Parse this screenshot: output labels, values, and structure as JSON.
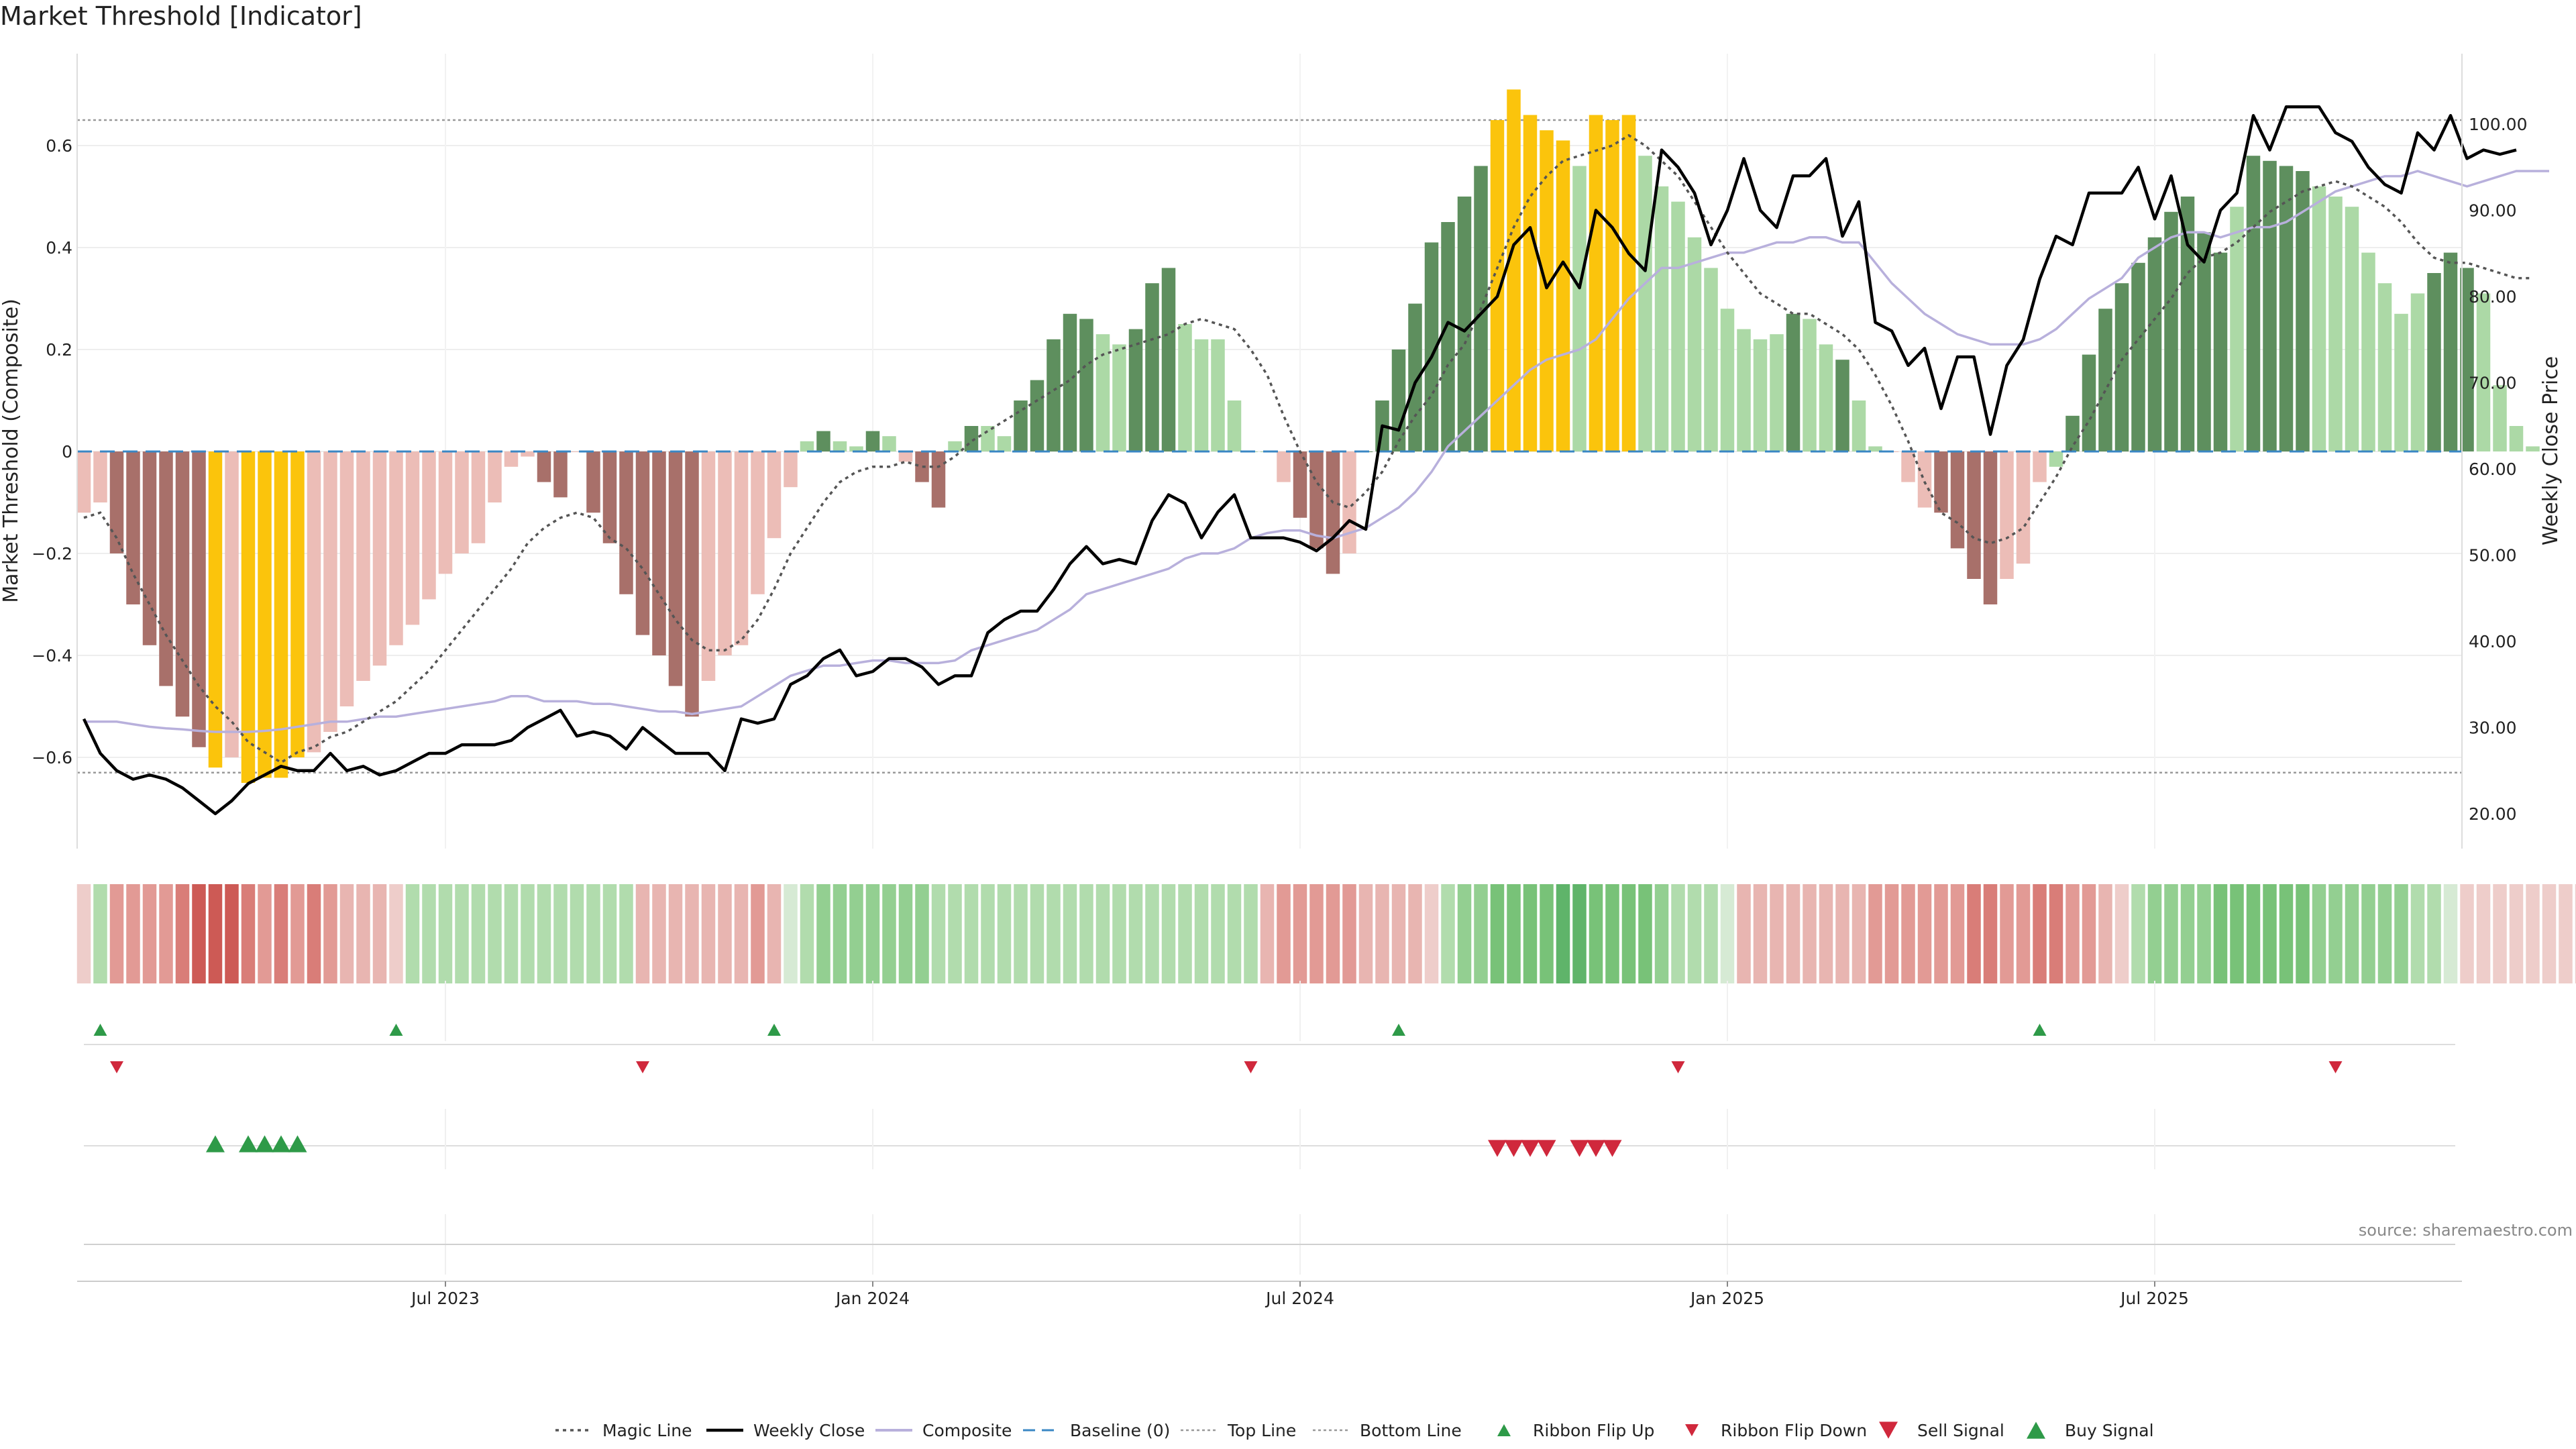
{
  "title": "Market Threshold [Indicator]",
  "source": "source: sharemaestro.com",
  "colors": {
    "bar_dark_red": "#a8706a",
    "bar_light_red": "#ecbdb7",
    "bar_dark_green": "#5e8f5e",
    "bar_light_green": "#acd9a6",
    "bar_yellow": "#fbc40c",
    "weekly_close": "#000000",
    "composite": "#b8b0dc",
    "magic": "#555555",
    "baseline": "#3a87c4",
    "guide": "#999999",
    "signal_up": "#2e9a48",
    "signal_down": "#d0283c"
  },
  "chart_data": {
    "type": "bar",
    "weeks": 150,
    "y_left": {
      "label": "Market Threshold (Composite)",
      "ticks": [
        -0.6,
        -0.4,
        -0.2,
        0,
        0.2,
        0.4,
        0.6
      ],
      "tick_labels": [
        "−0.6",
        "−0.4",
        "−0.2",
        "0",
        "0.2",
        "0.4",
        "0.6"
      ],
      "range": [
        -0.77,
        0.78
      ]
    },
    "y_right": {
      "label": "Weekly Close Price",
      "ticks": [
        20,
        30,
        40,
        50,
        60,
        70,
        80,
        90,
        100
      ],
      "tick_labels": [
        "20.00",
        "30.00",
        "40.00",
        "50.00",
        "60.00",
        "70.00",
        "80.00",
        "90.00",
        "100.00"
      ],
      "range": [
        15,
        107.5
      ]
    },
    "x_ticks": [
      {
        "label": "Jul 2023",
        "week": 22
      },
      {
        "label": "Jan 2024",
        "week": 48
      },
      {
        "label": "Jul 2024",
        "week": 74
      },
      {
        "label": "Jan 2025",
        "week": 100
      },
      {
        "label": "Jul 2025",
        "week": 126
      }
    ],
    "top_line": 0.65,
    "bottom_line": -0.63,
    "composite_bars": [
      -0.12,
      -0.1,
      -0.2,
      -0.3,
      -0.38,
      -0.46,
      -0.52,
      -0.58,
      -0.62,
      -0.6,
      -0.65,
      -0.64,
      -0.64,
      -0.6,
      -0.59,
      -0.55,
      -0.5,
      -0.45,
      -0.42,
      -0.38,
      -0.34,
      -0.29,
      -0.24,
      -0.2,
      -0.18,
      -0.1,
      -0.03,
      -0.01,
      -0.06,
      -0.09,
      0,
      -0.12,
      -0.18,
      -0.28,
      -0.36,
      -0.4,
      -0.46,
      -0.52,
      -0.45,
      -0.4,
      -0.38,
      -0.28,
      -0.17,
      -0.07,
      0.02,
      0.04,
      0.02,
      0.01,
      0.04,
      0.03,
      -0.02,
      -0.06,
      -0.11,
      0.02,
      0.05,
      0.05,
      0.03,
      0.1,
      0.14,
      0.22,
      0.27,
      0.26,
      0.23,
      0.21,
      0.24,
      0.33,
      0.36,
      0.25,
      0.22,
      0.22,
      0.1,
      0,
      0,
      -0.06,
      -0.13,
      -0.19,
      -0.24,
      -0.2,
      0,
      0.1,
      0.2,
      0.29,
      0.41,
      0.45,
      0.5,
      0.56,
      0.65,
      0.71,
      0.66,
      0.63,
      0.61,
      0.56,
      0.66,
      0.65,
      0.66,
      0.58,
      0.52,
      0.49,
      0.42,
      0.36,
      0.28,
      0.24,
      0.22,
      0.23,
      0.27,
      0.26,
      0.21,
      0.18,
      0.1,
      0.01,
      0,
      -0.06,
      -0.11,
      -0.12,
      -0.19,
      -0.25,
      -0.3,
      -0.25,
      -0.22,
      -0.06,
      -0.03,
      0.07,
      0.19,
      0.28,
      0.33,
      0.37,
      0.42,
      0.47,
      0.5,
      0.43,
      0.39,
      0.48,
      0.58,
      0.57,
      0.56,
      0.55,
      0.52,
      0.5,
      0.48,
      0.39,
      0.33,
      0.27,
      0.31,
      0.35,
      0.39,
      0.36,
      0.31,
      0.13,
      0.05,
      0.01
    ],
    "bar_colors": [
      "lr",
      "lr",
      "dr",
      "dr",
      "dr",
      "dr",
      "dr",
      "dr",
      "y",
      "lr",
      "y",
      "y",
      "y",
      "y",
      "lr",
      "lr",
      "lr",
      "lr",
      "lr",
      "lr",
      "lr",
      "lr",
      "lr",
      "lr",
      "lr",
      "lr",
      "lr",
      "lr",
      "dr",
      "dr",
      "lr",
      "dr",
      "dr",
      "dr",
      "dr",
      "dr",
      "dr",
      "dr",
      "lr",
      "lr",
      "lr",
      "lr",
      "lr",
      "lr",
      "lg",
      "dg",
      "lg",
      "lg",
      "dg",
      "lg",
      "lr",
      "dr",
      "dr",
      "lg",
      "dg",
      "lg",
      "lg",
      "dg",
      "dg",
      "dg",
      "dg",
      "dg",
      "lg",
      "lg",
      "dg",
      "dg",
      "dg",
      "lg",
      "lg",
      "lg",
      "lg",
      "lg",
      "lg",
      "lr",
      "dr",
      "dr",
      "dr",
      "lr",
      "dg",
      "dg",
      "dg",
      "dg",
      "dg",
      "dg",
      "dg",
      "dg",
      "y",
      "y",
      "y",
      "y",
      "y",
      "lg",
      "y",
      "y",
      "y",
      "lg",
      "lg",
      "lg",
      "lg",
      "lg",
      "lg",
      "lg",
      "lg",
      "lg",
      "dg",
      "lg",
      "lg",
      "dg",
      "lg",
      "lg",
      "lr",
      "lr",
      "lr",
      "dr",
      "dr",
      "dr",
      "dr",
      "lr",
      "lr",
      "lr",
      "lg",
      "dg",
      "dg",
      "dg",
      "dg",
      "dg",
      "dg",
      "dg",
      "dg",
      "dg",
      "dg",
      "lg",
      "dg",
      "dg",
      "dg",
      "dg",
      "lg",
      "lg",
      "lg",
      "lg",
      "lg",
      "lg",
      "lg",
      "dg",
      "dg",
      "dg",
      "lg",
      "lg"
    ],
    "weekly_close": [
      31,
      27,
      25,
      24,
      24.5,
      24,
      23,
      21.5,
      20,
      21.5,
      23.5,
      24.5,
      25.5,
      25,
      25,
      27,
      25,
      25.5,
      24.5,
      25,
      26,
      27,
      27,
      28,
      28,
      28,
      28.5,
      30,
      31,
      32,
      29,
      29.5,
      29,
      27.5,
      30,
      28.5,
      27,
      27,
      27,
      25,
      31,
      30.5,
      31,
      35,
      36,
      38,
      39,
      36,
      36.5,
      38,
      38,
      37,
      35,
      36,
      36,
      41,
      42.5,
      43.5,
      43.5,
      46,
      49,
      51,
      49,
      49.5,
      49,
      54,
      57,
      56,
      52,
      55,
      57,
      52,
      52,
      52,
      51.5,
      50.5,
      52,
      54,
      53,
      65,
      64.5,
      70,
      73,
      77,
      76,
      78,
      80,
      86,
      88,
      81,
      84,
      81,
      90,
      88,
      85,
      83,
      97,
      95,
      92,
      86,
      90,
      96,
      90,
      88,
      94,
      94,
      96,
      87,
      91,
      77,
      76,
      72,
      74,
      67,
      73,
      73,
      64,
      72,
      75,
      82,
      87,
      86,
      92,
      92,
      92,
      95,
      89,
      94,
      86,
      84,
      90,
      92,
      101,
      97,
      102,
      102,
      102,
      99,
      98,
      95,
      93,
      92,
      99,
      97,
      101,
      96,
      97,
      96.5,
      97
    ],
    "composite_line": [
      -0.53,
      -0.53,
      -0.53,
      -0.535,
      -0.54,
      -0.543,
      -0.545,
      -0.548,
      -0.55,
      -0.55,
      -0.55,
      -0.548,
      -0.545,
      -0.54,
      -0.535,
      -0.53,
      -0.53,
      -0.525,
      -0.52,
      -0.52,
      -0.515,
      -0.51,
      -0.505,
      -0.5,
      -0.495,
      -0.49,
      -0.48,
      -0.48,
      -0.49,
      -0.49,
      -0.49,
      -0.495,
      -0.495,
      -0.5,
      -0.505,
      -0.51,
      -0.51,
      -0.515,
      -0.51,
      -0.505,
      -0.5,
      -0.48,
      -0.46,
      -0.44,
      -0.43,
      -0.42,
      -0.42,
      -0.415,
      -0.41,
      -0.41,
      -0.415,
      -0.415,
      -0.415,
      -0.41,
      -0.39,
      -0.38,
      -0.37,
      -0.36,
      -0.35,
      -0.33,
      -0.31,
      -0.28,
      -0.27,
      -0.26,
      -0.25,
      -0.24,
      -0.23,
      -0.21,
      -0.2,
      -0.2,
      -0.19,
      -0.17,
      -0.16,
      -0.155,
      -0.155,
      -0.165,
      -0.17,
      -0.16,
      -0.15,
      -0.13,
      -0.11,
      -0.08,
      -0.04,
      0.01,
      0.04,
      0.07,
      0.1,
      0.13,
      0.16,
      0.18,
      0.19,
      0.2,
      0.22,
      0.26,
      0.3,
      0.33,
      0.36,
      0.36,
      0.37,
      0.38,
      0.39,
      0.39,
      0.4,
      0.41,
      0.41,
      0.42,
      0.42,
      0.41,
      0.41,
      0.37,
      0.33,
      0.3,
      0.27,
      0.25,
      0.23,
      0.22,
      0.21,
      0.21,
      0.21,
      0.22,
      0.24,
      0.27,
      0.3,
      0.32,
      0.34,
      0.38,
      0.4,
      0.42,
      0.43,
      0.43,
      0.42,
      0.43,
      0.44,
      0.44,
      0.45,
      0.47,
      0.49,
      0.51,
      0.52,
      0.53,
      0.54,
      0.54,
      0.55,
      0.54,
      0.53,
      0.52,
      0.53,
      0.54,
      0.55,
      0.55,
      0.55
    ],
    "magic_line": [
      -0.13,
      -0.12,
      -0.17,
      -0.24,
      -0.3,
      -0.36,
      -0.41,
      -0.46,
      -0.5,
      -0.53,
      -0.57,
      -0.59,
      -0.61,
      -0.59,
      -0.58,
      -0.56,
      -0.55,
      -0.53,
      -0.51,
      -0.49,
      -0.46,
      -0.43,
      -0.39,
      -0.35,
      -0.31,
      -0.27,
      -0.23,
      -0.18,
      -0.15,
      -0.13,
      -0.12,
      -0.13,
      -0.17,
      -0.19,
      -0.23,
      -0.28,
      -0.33,
      -0.37,
      -0.39,
      -0.39,
      -0.37,
      -0.33,
      -0.27,
      -0.2,
      -0.15,
      -0.1,
      -0.06,
      -0.04,
      -0.03,
      -0.03,
      -0.02,
      -0.03,
      -0.03,
      -0.01,
      0.02,
      0.04,
      0.06,
      0.08,
      0.1,
      0.12,
      0.14,
      0.17,
      0.19,
      0.2,
      0.21,
      0.22,
      0.23,
      0.25,
      0.26,
      0.25,
      0.24,
      0.2,
      0.15,
      0.07,
      0,
      -0.06,
      -0.1,
      -0.11,
      -0.08,
      -0.04,
      0.02,
      0.07,
      0.11,
      0.17,
      0.21,
      0.28,
      0.36,
      0.44,
      0.5,
      0.54,
      0.57,
      0.58,
      0.59,
      0.6,
      0.62,
      0.6,
      0.57,
      0.54,
      0.49,
      0.44,
      0.39,
      0.35,
      0.31,
      0.29,
      0.27,
      0.27,
      0.25,
      0.23,
      0.2,
      0.15,
      0.09,
      0.02,
      -0.06,
      -0.12,
      -0.14,
      -0.17,
      -0.18,
      -0.17,
      -0.15,
      -0.1,
      -0.05,
      0.01,
      0.06,
      0.12,
      0.18,
      0.22,
      0.26,
      0.3,
      0.35,
      0.38,
      0.39,
      0.41,
      0.44,
      0.47,
      0.49,
      0.51,
      0.52,
      0.53,
      0.52,
      0.5,
      0.48,
      0.45,
      0.41,
      0.38,
      0.37,
      0.37,
      0.36,
      0.35,
      0.34,
      0.34
    ],
    "ribbon_color_scale": [
      "#cd5a55",
      "#d97d78",
      "#e29a95",
      "#e8b5b1",
      "#eecdca",
      "#d6ead4",
      "#b1dcad",
      "#93cf91",
      "#78c278",
      "#5fb46a"
    ],
    "ribbon_levels": [
      -1,
      2,
      -3,
      -3,
      -3,
      -3,
      -4,
      -5,
      -5,
      -5,
      -4,
      -3,
      -4,
      -3,
      -4,
      -3,
      -2,
      -2,
      -2,
      -1,
      2,
      2,
      2,
      2,
      2,
      2,
      2,
      2,
      2,
      2,
      2,
      2,
      2,
      2,
      -2,
      -2,
      -2,
      -2,
      -2,
      -2,
      -2,
      -3,
      -2,
      1,
      2,
      3,
      3,
      3,
      3,
      3,
      3,
      3,
      2,
      2,
      2,
      2,
      2,
      2,
      2,
      2,
      2,
      2,
      2,
      2,
      2,
      2,
      2,
      2,
      2,
      2,
      2,
      2,
      -2,
      -3,
      -3,
      -3,
      -3,
      -3,
      -2,
      -2,
      -2,
      -2,
      -1,
      2,
      3,
      3,
      4,
      4,
      4,
      4,
      5,
      5,
      4,
      4,
      4,
      4,
      3,
      2,
      2,
      2,
      1,
      -2,
      -2,
      -2,
      -2,
      -2,
      -2,
      -2,
      -2,
      -3,
      -3,
      -3,
      -3,
      -3,
      -3,
      -4,
      -4,
      -3,
      -3,
      -4,
      -4,
      -3,
      -3,
      -2,
      -1,
      2,
      3,
      3,
      3,
      3,
      4,
      4,
      4,
      4,
      4,
      4,
      3,
      3,
      3,
      3,
      3,
      3,
      2,
      2,
      1,
      -1,
      -1,
      -1,
      -1,
      -1,
      -1,
      -1,
      -1
    ],
    "ribbon_flip_up_weeks": [
      1,
      19,
      42,
      80,
      119
    ],
    "ribbon_flip_down_weeks": [
      2,
      34,
      71,
      97,
      137
    ],
    "buy_signal_weeks": [
      8,
      10,
      11,
      12,
      13
    ],
    "sell_signal_weeks": [
      86,
      87,
      88,
      89,
      91,
      92,
      93
    ]
  },
  "legend": [
    {
      "label": "Magic Line",
      "kind": "dotted-line"
    },
    {
      "label": "Weekly Close",
      "kind": "solid-line"
    },
    {
      "label": "Composite",
      "kind": "composite-line"
    },
    {
      "label": "Baseline (0)",
      "kind": "dashed-line"
    },
    {
      "label": "Top Line",
      "kind": "guide-line"
    },
    {
      "label": "Bottom Line",
      "kind": "guide-line"
    },
    {
      "label": "Ribbon Flip Up",
      "kind": "small-up"
    },
    {
      "label": "Ribbon Flip Down",
      "kind": "small-down"
    },
    {
      "label": "Sell Signal",
      "kind": "big-down"
    },
    {
      "label": "Buy Signal",
      "kind": "big-up"
    }
  ]
}
